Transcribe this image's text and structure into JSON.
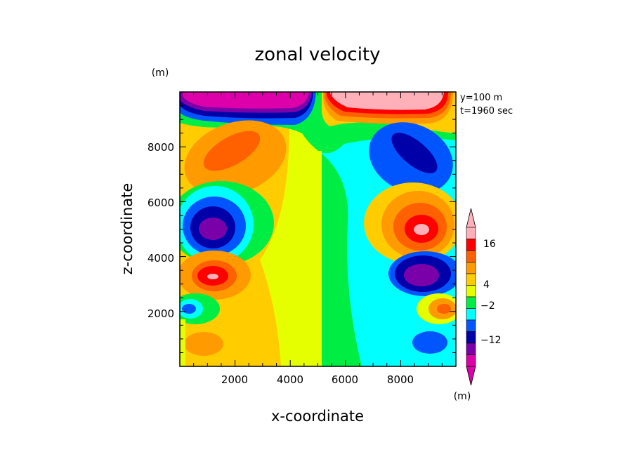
{
  "chart_data": {
    "type": "heatmap",
    "title": "zonal velocity",
    "xlabel": "x-coordinate",
    "ylabel": "z-coordinate",
    "x_unit": "(m)",
    "y_unit": "(m)",
    "colorbar_unit": "(m)",
    "annotation": [
      "y=100 m",
      "t=1960 sec"
    ],
    "xlim": [
      0,
      10000
    ],
    "ylim": [
      0,
      10000
    ],
    "xticks": [
      2000,
      4000,
      6000,
      8000
    ],
    "yticks": [
      2000,
      4000,
      6000,
      8000
    ],
    "xtick_labels": [
      "2000",
      "4000",
      "6000",
      "8000"
    ],
    "ytick_labels": [
      "2000",
      "4000",
      "6000",
      "8000"
    ],
    "colorbar_labels": [
      "16",
      "4",
      "−2",
      "−12"
    ],
    "colorbar_colors": [
      "#ffb0b8",
      "#ff0000",
      "#ff6000",
      "#ff9a00",
      "#ffcc00",
      "#e6ff00",
      "#00ee44",
      "#00ffff",
      "#0055ff",
      "#0000a8",
      "#7a00aa",
      "#dd00aa"
    ],
    "features": [
      {
        "x": 1200,
        "z": 9500,
        "value": "-16",
        "kind": "jet"
      },
      {
        "x": 8700,
        "z": 9500,
        "value": "16",
        "kind": "jet"
      },
      {
        "x": 1800,
        "z": 8000,
        "value": "6",
        "kind": "max"
      },
      {
        "x": 8300,
        "z": 8000,
        "value": "-8",
        "kind": "min"
      },
      {
        "x": 1100,
        "z": 5000,
        "value": "-14",
        "kind": "min"
      },
      {
        "x": 8900,
        "z": 5000,
        "value": "14",
        "kind": "max"
      },
      {
        "x": 1300,
        "z": 3300,
        "value": "12",
        "kind": "max"
      },
      {
        "x": 8700,
        "z": 3300,
        "value": "-12",
        "kind": "min"
      },
      {
        "x": 300,
        "z": 2100,
        "value": "-8",
        "kind": "min"
      },
      {
        "x": 9700,
        "z": 2100,
        "value": "8",
        "kind": "max"
      },
      {
        "x": 1200,
        "z": 900,
        "value": "6",
        "kind": "max"
      },
      {
        "x": 8800,
        "z": 900,
        "value": "-8",
        "kind": "min"
      }
    ]
  }
}
